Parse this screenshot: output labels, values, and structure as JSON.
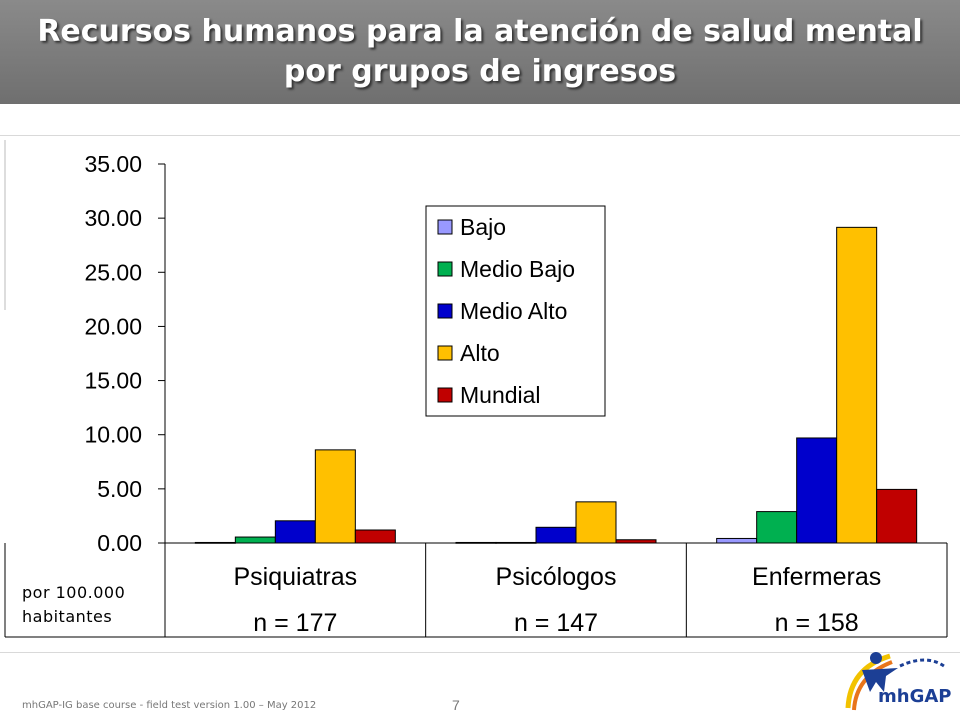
{
  "slide": {
    "title": "Recursos humanos para la atención de salud mental por grupos de ingresos",
    "unit_label_line1": "por 100.000",
    "unit_label_line2": "habitantes",
    "footer": "mhGAP-IG base course -  field test version 1.00 – May 2012",
    "page_number": "7",
    "logo_text": "mhGAP"
  },
  "chart_data": {
    "type": "bar",
    "title": "",
    "xlabel": "",
    "ylabel": "",
    "ylim": [
      0,
      35
    ],
    "yticks": [
      0,
      5,
      10,
      15,
      20,
      25,
      30,
      35
    ],
    "ytick_labels": [
      "0.00",
      "5.00",
      "10.00",
      "15.00",
      "20.00",
      "25.00",
      "30.00",
      "35.00"
    ],
    "categories": [
      "Psiquiatras",
      "Psicólogos",
      "Enfermeras"
    ],
    "category_n": [
      "n = 177",
      "n = 147",
      "n = 158"
    ],
    "legend_position": "top-center",
    "grid": false,
    "series": [
      {
        "name": "Bajo",
        "color": "#9999ff",
        "values": [
          0.05,
          0.05,
          0.42
        ]
      },
      {
        "name": "Medio Bajo",
        "color": "#00b050",
        "values": [
          0.55,
          0.05,
          2.9
        ]
      },
      {
        "name": "Medio Alto",
        "color": "#0000cc",
        "values": [
          2.05,
          1.45,
          9.7
        ]
      },
      {
        "name": "Alto",
        "color": "#ffc000",
        "values": [
          8.6,
          3.8,
          29.15
        ]
      },
      {
        "name": "Mundial",
        "color": "#c00000",
        "values": [
          1.2,
          0.3,
          4.95
        ]
      }
    ]
  }
}
